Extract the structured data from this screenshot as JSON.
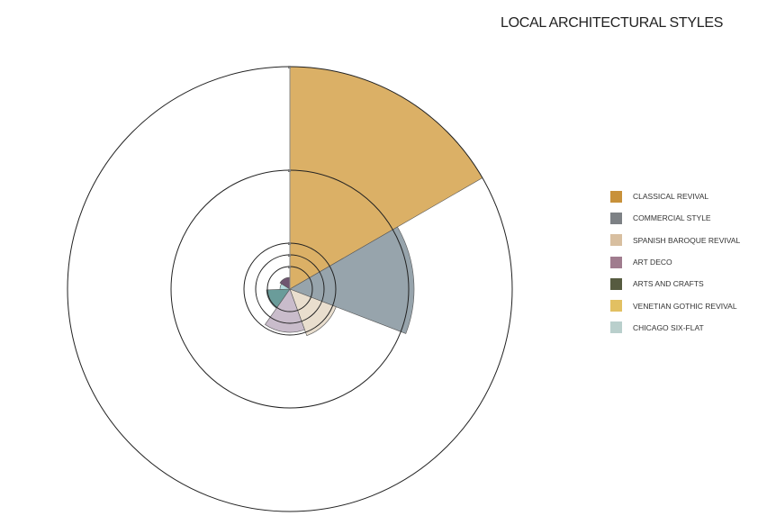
{
  "chart_data": {
    "type": "polar-area",
    "title": "LOCAL ARCHITECTURAL STYLES",
    "categories": [
      "CLASSICAL REVIVAL",
      "COMMERCIAL STYLE",
      "SPANISH BAROQUE REVIVAL",
      "ART DECO",
      "ARTS AND CRAFTS",
      "VENETIAN GOTHIC REVIVAL",
      "CHICAGO SIX-FLAT"
    ],
    "legend_colors": [
      "#c8913a",
      "#7d8185",
      "#d8bfa0",
      "#a07c8e",
      "#565b40",
      "#e2c062",
      "#b9cfcc"
    ],
    "sectors": [
      {
        "name": "CLASSICAL REVIVAL",
        "start": 0,
        "end": 60,
        "r": 247,
        "fill": "#dbb066"
      },
      {
        "name": "COMMERCIAL STYLE",
        "start": 60,
        "end": 111,
        "r": 138,
        "fill": "#97a4ac"
      },
      {
        "name": "SPANISH BAROQUE REVIVAL",
        "start": 111,
        "end": 160,
        "r": 55,
        "fill": "#e9dece"
      },
      {
        "name": "ART DECO",
        "start": 160,
        "end": 215,
        "r": 48,
        "fill": "#c9bccb"
      },
      {
        "name": "ARTS AND CRAFTS",
        "start": 215,
        "end": 268,
        "r": 26,
        "fill": "#6a9c9a"
      },
      {
        "name": "VENETIAN GOTHIC REVIVAL",
        "start": 268,
        "end": 302,
        "r": 11,
        "fill": "#b3dbdc"
      },
      {
        "name": "CHICAGO SIX-FLAT",
        "start": 302,
        "end": 360,
        "r": 13,
        "fill": "#6f5670"
      }
    ],
    "grid_radii": [
      25,
      38,
      51,
      132,
      247
    ],
    "center": [
      322,
      321
    ],
    "legend_position": "right"
  }
}
